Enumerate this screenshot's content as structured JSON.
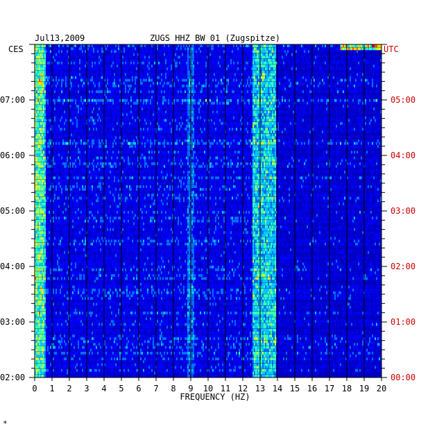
{
  "header": {
    "date": "Jul13,2009",
    "station": "ZUGS HHZ BW 01 (Zugspitze)"
  },
  "chart_data": {
    "type": "heatmap",
    "title": "ZUGS HHZ BW 01 (Zugspitze)",
    "date": "Jul13,2009",
    "xlabel": "FREQUENCY (HZ)",
    "x_ticks": [
      "0",
      "1",
      "2",
      "3",
      "4",
      "5",
      "6",
      "7",
      "8",
      "9",
      "10",
      "11",
      "12",
      "13",
      "14",
      "15",
      "16",
      "17",
      "18",
      "19",
      "20"
    ],
    "xlim": [
      0,
      20
    ],
    "left_axis": {
      "label": "CES",
      "ticks": [
        "02:00",
        "03:00",
        "04:00",
        "05:00",
        "06:00",
        "07:00"
      ],
      "color": "#000000"
    },
    "right_axis": {
      "label": "UTC",
      "ticks": [
        "00:00",
        "01:00",
        "02:00",
        "03:00",
        "04:00",
        "05:00"
      ],
      "color": "#cc0000"
    },
    "time_range_ces": [
      "02:00",
      "07:50"
    ],
    "colormap": [
      "#0000a0",
      "#0000ff",
      "#0070ff",
      "#00c8ff",
      "#40ffb0",
      "#c8ff40",
      "#ffd000",
      "#ff5000",
      "#c00000"
    ],
    "features": [
      {
        "freq_range": [
          0.0,
          0.6
        ],
        "intensity": "high"
      },
      {
        "freq_range": [
          12.6,
          13.9
        ],
        "intensity": "high"
      },
      {
        "freq_range": [
          8.8,
          9.2
        ],
        "intensity": "medium"
      },
      {
        "freq_range": [
          17.6,
          20.0
        ],
        "time_ces": "07:50",
        "intensity": "medium"
      }
    ]
  },
  "footer_mark": "*"
}
